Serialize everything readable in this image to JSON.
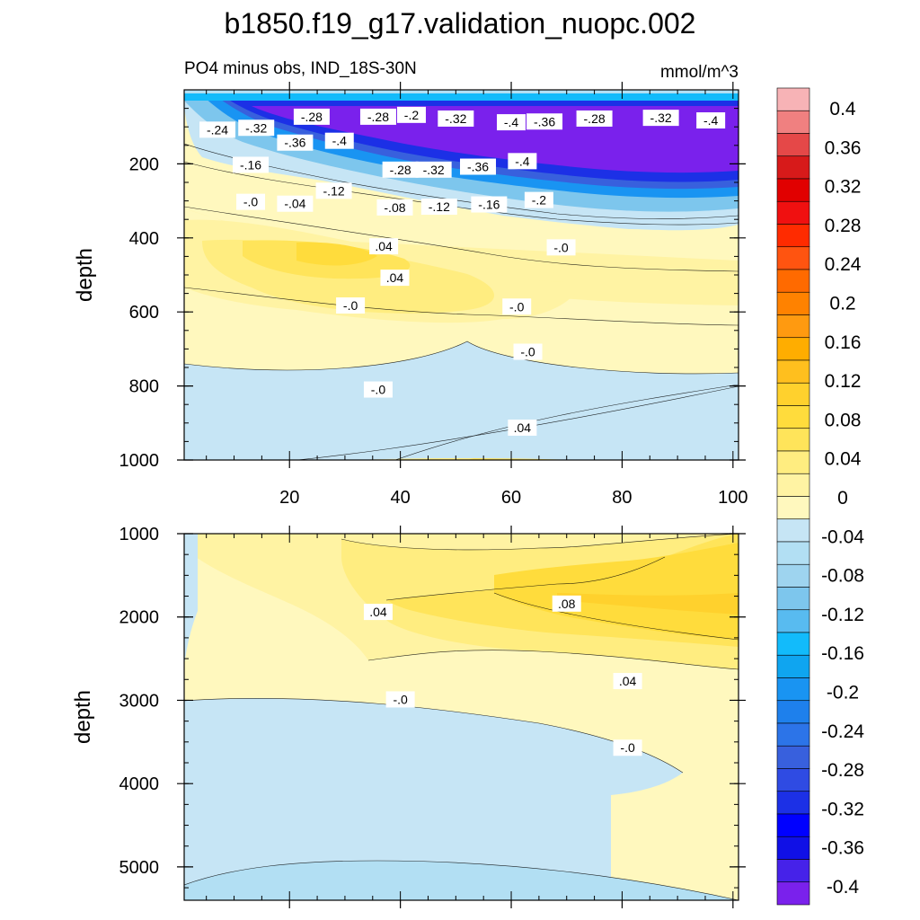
{
  "title": "b1850.f19_g17.validation_nuopc.002",
  "subtitle_left": "PO4 minus obs, IND_18S-30N",
  "subtitle_right": "mmol/m^3",
  "chart_data": {
    "type": "heatmap",
    "variable": "PO4 minus obs",
    "units": "mmol/m^3",
    "x": {
      "range": [
        1,
        101
      ],
      "tick_labels": [
        "20",
        "40",
        "60",
        "80",
        "100"
      ],
      "tick_values": [
        20,
        40,
        60,
        80,
        100
      ]
    },
    "panels": [
      {
        "name": "upper",
        "ylabel": "depth",
        "ylim": [
          0,
          1000
        ],
        "y_reversed": true,
        "y_tick_values": [
          200,
          400,
          600,
          800,
          1000
        ],
        "y_tick_labels": [
          "200",
          "400",
          "600",
          "800",
          "1000"
        ],
        "contour_labels": [
          {
            "text": "-.24",
            "x": 7,
            "y": 110
          },
          {
            "text": "-.32",
            "x": 14,
            "y": 105
          },
          {
            "text": "-.28",
            "x": 24,
            "y": 75
          },
          {
            "text": "-.28",
            "x": 36,
            "y": 75
          },
          {
            "text": "-.2",
            "x": 42,
            "y": 70
          },
          {
            "text": "-.32",
            "x": 50,
            "y": 80
          },
          {
            "text": "-.4",
            "x": 60,
            "y": 90
          },
          {
            "text": "-.36",
            "x": 66,
            "y": 88
          },
          {
            "text": "-.28",
            "x": 75,
            "y": 80
          },
          {
            "text": "-.32",
            "x": 87,
            "y": 78
          },
          {
            "text": "-.4",
            "x": 96,
            "y": 85
          },
          {
            "text": "-.36",
            "x": 21,
            "y": 145
          },
          {
            "text": "-.4",
            "x": 29,
            "y": 140
          },
          {
            "text": "-.16",
            "x": 13,
            "y": 205
          },
          {
            "text": "-.28",
            "x": 40,
            "y": 218
          },
          {
            "text": "-.32",
            "x": 46,
            "y": 218
          },
          {
            "text": "-.36",
            "x": 54,
            "y": 210
          },
          {
            "text": "-.4",
            "x": 62,
            "y": 195
          },
          {
            "text": "-.12",
            "x": 28,
            "y": 275
          },
          {
            "text": "-.0",
            "x": 13,
            "y": 305
          },
          {
            "text": "-.04",
            "x": 21,
            "y": 310
          },
          {
            "text": "-.08",
            "x": 39,
            "y": 320
          },
          {
            "text": "-.12",
            "x": 47,
            "y": 318
          },
          {
            "text": "-.16",
            "x": 56,
            "y": 312
          },
          {
            "text": "-.2",
            "x": 65,
            "y": 300
          },
          {
            "text": ".04",
            "x": 37,
            "y": 425
          },
          {
            "text": "-.0",
            "x": 69,
            "y": 428
          },
          {
            "text": ".04",
            "x": 39,
            "y": 510
          },
          {
            "text": "-.0",
            "x": 31,
            "y": 585
          },
          {
            "text": "-.0",
            "x": 61,
            "y": 588
          },
          {
            "text": "-.0",
            "x": 63,
            "y": 710
          },
          {
            "text": "-.0",
            "x": 36,
            "y": 812
          },
          {
            "text": ".04",
            "x": 62,
            "y": 915
          }
        ]
      },
      {
        "name": "lower",
        "ylabel": "depth",
        "ylim": [
          1000,
          5400
        ],
        "y_reversed": true,
        "y_tick_values": [
          1000,
          2000,
          3000,
          4000,
          5000
        ],
        "y_tick_labels": [
          "1000",
          "2000",
          "3000",
          "4000",
          "5000"
        ],
        "contour_labels": [
          {
            "text": ".04",
            "x": 36,
            "y": 1950
          },
          {
            "text": ".08",
            "x": 70,
            "y": 1850
          },
          {
            "text": ".04",
            "x": 81,
            "y": 2780
          },
          {
            "text": "-.0",
            "x": 40,
            "y": 3000
          },
          {
            "text": "-.0",
            "x": 81,
            "y": 3580
          }
        ]
      }
    ],
    "colorbar": {
      "labels": [
        "0.4",
        "0.36",
        "0.32",
        "0.28",
        "0.24",
        "0.2",
        "0.16",
        "0.12",
        "0.08",
        "0.04",
        "0",
        "-0.04",
        "-0.08",
        "-0.12",
        "-0.16",
        "-0.2",
        "-0.24",
        "-0.28",
        "-0.32",
        "-0.36",
        "-0.4"
      ],
      "colors_top_to_bottom": [
        "#f7b3b6",
        "#f08080",
        "#e54848",
        "#d71a1a",
        "#e10000",
        "#f01010",
        "#ff2b00",
        "#ff5410",
        "#ff6a00",
        "#ff8200",
        "#ff9a10",
        "#ffad00",
        "#ffbf1e",
        "#ffd12d",
        "#ffdc3c",
        "#ffe45a",
        "#ffed80",
        "#fff3a3",
        "#fff8be",
        "#c6e5f5",
        "#b2dff3",
        "#9ed4ef",
        "#7dc6ed",
        "#58bbf0",
        "#12bbfb",
        "#0fa5f0",
        "#1994f2",
        "#1e80ec",
        "#2c74e8",
        "#3860dd",
        "#2f4be3",
        "#1c30e6",
        "#0000ff",
        "#1010e6",
        "#4622e9",
        "#7a21ec"
      ]
    }
  }
}
